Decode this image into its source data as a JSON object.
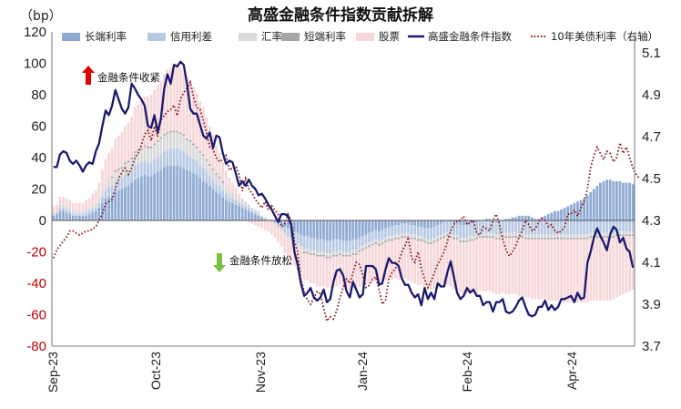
{
  "chart_data": {
    "type": "bar+line",
    "title": "高盛金融条件指数贡献拆解",
    "y_left_unit": "（bp）",
    "y_left": {
      "min": -80,
      "max": 120,
      "ticks": [
        "120",
        "100",
        "80",
        "60",
        "40",
        "20",
        "0",
        "-20",
        "-40",
        "-60",
        "-80"
      ]
    },
    "y_right": {
      "min": 3.7,
      "max": 5.2,
      "ticks": [
        "5.1",
        "4.9",
        "4.7",
        "4.5",
        "4.3",
        "4.1",
        "3.9",
        "3.7"
      ]
    },
    "x_ticks": [
      "Sep-23",
      "Oct-23",
      "Nov-23",
      "Jan-24",
      "Feb-24",
      "Apr-24"
    ],
    "legend": [
      "长端利率",
      "信用利差",
      "汇率",
      "短端利率",
      "股票",
      "高盛金融条件指数",
      "10年美债利率（右轴）"
    ],
    "colors": {
      "long_rate": "#8eaad4",
      "credit": "#b7c9e4",
      "fx": "#d9d9d9",
      "short_rate": "#a6a6a6",
      "equity": "#f7d7d9",
      "fci": "#1a1a6e",
      "ust10y": "#8b1a1a"
    },
    "annotations": {
      "tighten": "金融条件收紧",
      "ease": "金融条件放松"
    },
    "fci_index": [
      34,
      34,
      42,
      44,
      43,
      38,
      36,
      38,
      35,
      31,
      35,
      37,
      36,
      44,
      49,
      60,
      70,
      67,
      73,
      83,
      77,
      71,
      68,
      72,
      87,
      84,
      80,
      77,
      73,
      60,
      59,
      67,
      56,
      65,
      84,
      93,
      87,
      99,
      98,
      101,
      99,
      87,
      71,
      68,
      68,
      61,
      54,
      52,
      56,
      46,
      54,
      53,
      43,
      36,
      38,
      37,
      30,
      22,
      25,
      22,
      26,
      22,
      20,
      16,
      17,
      14,
      10,
      7,
      3,
      -1,
      4,
      4,
      3,
      -3,
      -20,
      -28,
      -40,
      -48,
      -46,
      -43,
      -49,
      -51,
      -49,
      -44,
      -52,
      -50,
      -39,
      -32,
      -31,
      -35,
      -45,
      -49,
      -39,
      -44,
      -49,
      -47,
      -29,
      -29,
      -29,
      -31,
      -41,
      -40,
      -31,
      -24,
      -27,
      -27,
      -29,
      -37,
      -41,
      -41,
      -46,
      -49,
      -47,
      -54,
      -43,
      -50,
      -46,
      -50,
      -40,
      -42,
      -42,
      -33,
      -26,
      -36,
      -46,
      -50,
      -48,
      -43,
      -46,
      -44,
      -48,
      -48,
      -54,
      -52,
      -52,
      -58,
      -52,
      -52,
      -50,
      -58,
      -59,
      -58,
      -55,
      -51,
      -49,
      -55,
      -60,
      -61,
      -60,
      -55,
      -55,
      -51,
      -57,
      -54,
      -57,
      -55,
      -50,
      -50,
      -49,
      -48,
      -52,
      -46,
      -50,
      -49,
      -27,
      -20,
      -11,
      -5,
      -10,
      -14,
      -19,
      -9,
      -4,
      -6,
      -14,
      -11,
      -18,
      -20,
      -30
    ],
    "ust10y_right": [
      4.12,
      4.16,
      4.18,
      4.2,
      4.22,
      4.25,
      4.25,
      4.24,
      4.23,
      4.24,
      4.25,
      4.25,
      4.26,
      4.27,
      4.3,
      4.33,
      4.38,
      4.39,
      4.4,
      4.45,
      4.5,
      4.53,
      4.55,
      4.52,
      4.55,
      4.6,
      4.62,
      4.66,
      4.71,
      4.73,
      4.68,
      4.75,
      4.7,
      4.78,
      4.8,
      4.82,
      4.83,
      4.85,
      4.8,
      4.88,
      4.91,
      4.93,
      4.96,
      4.89,
      4.84,
      4.83,
      4.78,
      4.72,
      4.65,
      4.64,
      4.6,
      4.58,
      4.59,
      4.61,
      4.54,
      4.55,
      4.56,
      4.52,
      4.44,
      4.5,
      4.45,
      4.43,
      4.4,
      4.38,
      4.36,
      4.39,
      4.35,
      4.37,
      4.35,
      4.33,
      4.27,
      4.28,
      4.33,
      4.3,
      4.2,
      4.15,
      4.02,
      3.96,
      3.92,
      3.9,
      3.93,
      3.96,
      3.95,
      3.88,
      3.82,
      3.84,
      3.83,
      3.87,
      3.93,
      3.98,
      4.02,
      4.0,
      4.05,
      4.1,
      4.09,
      4.04,
      3.98,
      3.99,
      4.02,
      4.03,
      3.97,
      3.9,
      3.92,
      4.02,
      4.05,
      4.07,
      4.1,
      4.15,
      4.18,
      4.22,
      4.12,
      4.1,
      4.15,
      4.07,
      4.02,
      3.98,
      4.01,
      4.05,
      4.09,
      4.12,
      4.15,
      4.2,
      4.25,
      4.28,
      4.3,
      4.3,
      4.32,
      4.28,
      4.29,
      4.3,
      4.24,
      4.23,
      4.27,
      4.26,
      4.25,
      4.3,
      4.33,
      4.28,
      4.21,
      4.16,
      4.13,
      4.15,
      4.18,
      4.22,
      4.25,
      4.3,
      4.28,
      4.25,
      4.26,
      4.29,
      4.31,
      4.3,
      4.27,
      4.28,
      4.25,
      4.24,
      4.25,
      4.27,
      4.33,
      4.33,
      4.35,
      4.32,
      4.36,
      4.39,
      4.45,
      4.55,
      4.61,
      4.65,
      4.62,
      4.59,
      4.63,
      4.62,
      4.58,
      4.6,
      4.67,
      4.62,
      4.65,
      4.6,
      4.55,
      4.52,
      4.5
    ],
    "long_rate": [
      3,
      4,
      6,
      6,
      5,
      4,
      3,
      3,
      3,
      3,
      3,
      4,
      5,
      6,
      8,
      11,
      14,
      15,
      16,
      18,
      19,
      20,
      21,
      22,
      24,
      26,
      27,
      28,
      29,
      28,
      28,
      30,
      31,
      32,
      34,
      35,
      35,
      35,
      35,
      34,
      33,
      32,
      31,
      30,
      29,
      27,
      25,
      24,
      22,
      20,
      18,
      17,
      15,
      13,
      12,
      11,
      10,
      9,
      8,
      7,
      6,
      5,
      4,
      3,
      2,
      1,
      0,
      0,
      -1,
      -2,
      -3,
      -4,
      -5,
      -6,
      -7,
      -8,
      -9,
      -10,
      -10,
      -11,
      -11,
      -12,
      -12,
      -12,
      -13,
      -13,
      -12,
      -12,
      -12,
      -13,
      -13,
      -13,
      -12,
      -12,
      -11,
      -10,
      -9,
      -8,
      -7,
      -6,
      -7,
      -6,
      -5,
      -4,
      -4,
      -3,
      -3,
      -2,
      -2,
      -2,
      -3,
      -3,
      -4,
      -4,
      -5,
      -5,
      -5,
      -4,
      -3,
      -2,
      -1,
      0,
      -1,
      -2,
      -2,
      -3,
      -3,
      -3,
      -2,
      -2,
      -1,
      0,
      0,
      1,
      1,
      0,
      -1,
      -1,
      0,
      1,
      1,
      2,
      2,
      3,
      3,
      3,
      3,
      2,
      1,
      1,
      2,
      3,
      4,
      5,
      6,
      6,
      7,
      8,
      9,
      10,
      11,
      12,
      13,
      14,
      16,
      18,
      20,
      22,
      24,
      25,
      26,
      26,
      25,
      25,
      25,
      24,
      24,
      24,
      23,
      22,
      22,
      22,
      21
    ],
    "credit": [
      1,
      1,
      2,
      2,
      2,
      2,
      1,
      1,
      1,
      1,
      2,
      2,
      2,
      2,
      3,
      4,
      5,
      6,
      6,
      7,
      7,
      7,
      8,
      8,
      8,
      9,
      9,
      9,
      9,
      9,
      9,
      9,
      9,
      10,
      10,
      10,
      11,
      11,
      11,
      11,
      11,
      10,
      10,
      9,
      9,
      8,
      8,
      7,
      6,
      6,
      5,
      5,
      4,
      4,
      3,
      3,
      3,
      2,
      2,
      2,
      2,
      1,
      1,
      1,
      0,
      0,
      0,
      -1,
      -1,
      -2,
      -3,
      -4,
      -5,
      -5,
      -6,
      -7,
      -7,
      -8,
      -8,
      -8,
      -8,
      -8,
      -8,
      -8,
      -8,
      -8,
      -8,
      -8,
      -7,
      -7,
      -7,
      -7,
      -7,
      -7,
      -6,
      -6,
      -6,
      -6,
      -6,
      -6,
      -6,
      -6,
      -6,
      -6,
      -6,
      -6,
      -6,
      -6,
      -6,
      -6,
      -6,
      -6,
      -6,
      -6,
      -6,
      -7,
      -7,
      -7,
      -7,
      -7,
      -7,
      -7,
      -7,
      -7,
      -7,
      -8,
      -8,
      -8,
      -8,
      -8,
      -8,
      -8,
      -8,
      -8,
      -8,
      -8,
      -8,
      -8,
      -8,
      -8,
      -8,
      -8,
      -8,
      -8,
      -8,
      -9,
      -9,
      -9,
      -9,
      -9,
      -9,
      -9,
      -9,
      -9,
      -9,
      -9,
      -9,
      -9,
      -9,
      -9,
      -9,
      -9,
      -9,
      -9,
      -9,
      -8,
      -8,
      -8,
      -8,
      -8,
      -8,
      -8,
      -8,
      -7,
      -7,
      -7,
      -7,
      -7,
      -7,
      -7,
      -7
    ],
    "fx": [
      1,
      1,
      2,
      2,
      2,
      2,
      2,
      2,
      2,
      2,
      2,
      2,
      3,
      3,
      3,
      4,
      4,
      5,
      5,
      6,
      6,
      6,
      7,
      7,
      7,
      8,
      8,
      8,
      9,
      9,
      9,
      9,
      10,
      10,
      10,
      10,
      10,
      10,
      10,
      10,
      10,
      9,
      9,
      9,
      8,
      8,
      8,
      7,
      7,
      6,
      6,
      5,
      5,
      5,
      4,
      4,
      4,
      3,
      3,
      3,
      2,
      2,
      2,
      2,
      1,
      1,
      1,
      0,
      0,
      0,
      0,
      -1,
      -1,
      -1,
      -2,
      -2,
      -2,
      -2,
      -2,
      -2,
      -2,
      -2,
      -2,
      -2,
      -2,
      -2,
      -2,
      -2,
      -2,
      -2,
      -2,
      -2,
      -2,
      -2,
      -2,
      -2,
      -2,
      -2,
      -2,
      -2,
      -2,
      -2,
      -2,
      -2,
      -2,
      -2,
      -2,
      -2,
      -2,
      -2,
      -2,
      -2,
      -2,
      -2,
      -2,
      -2,
      -2,
      -2,
      -2,
      -2,
      -2,
      -2,
      -2,
      -2,
      -2,
      -2,
      -2,
      -2,
      -2,
      -2,
      -2,
      -2,
      -2,
      -2,
      -2,
      -2,
      -2,
      -2,
      -2,
      -2,
      -2,
      -2,
      -2,
      -2,
      -2,
      -2,
      -2,
      -2,
      -2,
      -2,
      -2,
      -2,
      -2,
      -2,
      -2,
      -2,
      -2,
      -2,
      -2,
      -2,
      -2,
      -2,
      -2,
      -2,
      -2,
      -2,
      -2,
      -2,
      -2,
      -2,
      -2,
      -2,
      -2,
      -2,
      -2,
      -2,
      -2,
      -2,
      -2,
      -2,
      -2,
      -2,
      -2,
      -2
    ],
    "short_rate": [
      0,
      0,
      0,
      0,
      0,
      0,
      0,
      0,
      0,
      0,
      0,
      0,
      0,
      0,
      0,
      0,
      0,
      0,
      1,
      1,
      1,
      1,
      1,
      1,
      1,
      1,
      1,
      1,
      1,
      1,
      1,
      1,
      1,
      1,
      1,
      1,
      1,
      1,
      1,
      1,
      1,
      1,
      1,
      1,
      1,
      1,
      1,
      1,
      1,
      1,
      1,
      1,
      1,
      0,
      0,
      0,
      0,
      0,
      0,
      0,
      0,
      0,
      0,
      0,
      0,
      0,
      0,
      0,
      0,
      0,
      0,
      0,
      0,
      0,
      0,
      0,
      0,
      -1,
      -1,
      -1,
      -1,
      -1,
      -1,
      -1,
      -1,
      -1,
      -1,
      -1,
      -1,
      -1,
      -1,
      -1,
      -1,
      -1,
      -1,
      -1,
      -1,
      -1,
      -1,
      -1,
      -1,
      -1,
      -1,
      -1,
      -1,
      -1,
      -1,
      -1,
      -1,
      -1,
      -1,
      -1,
      -1,
      -1,
      -1,
      -1,
      -1,
      -1,
      -1,
      -1,
      -1,
      -1,
      -1,
      -1,
      -1,
      -1,
      -1,
      -1,
      -1,
      -1,
      -1,
      -1,
      -1,
      -1,
      -1,
      -1,
      -1,
      -1,
      -1,
      -1,
      -1,
      -1,
      -1,
      -1,
      -1,
      -1,
      -1,
      -1,
      -1,
      -1,
      -1,
      -1,
      -1,
      -1,
      -1,
      -1,
      -1,
      -1,
      -1,
      -1,
      -1,
      -1,
      -1,
      -1,
      -1,
      -1,
      -1,
      -1,
      -1,
      -1,
      -1,
      -1,
      -1,
      -1,
      -1,
      -1,
      -1,
      -1,
      -1,
      -1,
      -1
    ],
    "equity": [
      4,
      4,
      5,
      5,
      5,
      5,
      5,
      5,
      5,
      5,
      6,
      6,
      7,
      8,
      10,
      13,
      16,
      17,
      18,
      20,
      21,
      22,
      23,
      24,
      26,
      28,
      29,
      30,
      31,
      32,
      33,
      34,
      35,
      36,
      38,
      40,
      40,
      41,
      41,
      41,
      40,
      39,
      38,
      36,
      34,
      32,
      30,
      27,
      24,
      21,
      18,
      15,
      12,
      10,
      8,
      6,
      4,
      3,
      1,
      0,
      -1,
      -2,
      -3,
      -4,
      -5,
      -6,
      -7,
      -8,
      -9,
      -10,
      -11,
      -12,
      -13,
      -14,
      -14,
      -15,
      -16,
      -17,
      -17,
      -18,
      -18,
      -19,
      -19,
      -19,
      -19,
      -19,
      -19,
      -19,
      -19,
      -20,
      -20,
      -21,
      -21,
      -21,
      -22,
      -22,
      -22,
      -23,
      -23,
      -23,
      -24,
      -24,
      -24,
      -25,
      -25,
      -25,
      -26,
      -26,
      -26,
      -27,
      -27,
      -28,
      -28,
      -28,
      -29,
      -29,
      -29,
      -30,
      -30,
      -30,
      -31,
      -31,
      -31,
      -32,
      -32,
      -32,
      -33,
      -33,
      -33,
      -33,
      -34,
      -34,
      -34,
      -34,
      -34,
      -35,
      -35,
      -35,
      -35,
      -36,
      -36,
      -36,
      -36,
      -37,
      -37,
      -37,
      -37,
      -38,
      -38,
      -38,
      -38,
      -38,
      -39,
      -39,
      -39,
      -39,
      -39,
      -40,
      -40,
      -40,
      -40,
      -40,
      -40,
      -40,
      -40,
      -40,
      -40,
      -40,
      -40,
      -40,
      -40,
      -40,
      -39,
      -39,
      -38,
      -37,
      -36,
      -35,
      -34,
      -33,
      -32,
      -31,
      -30,
      -30,
      -29,
      -29
    ]
  }
}
